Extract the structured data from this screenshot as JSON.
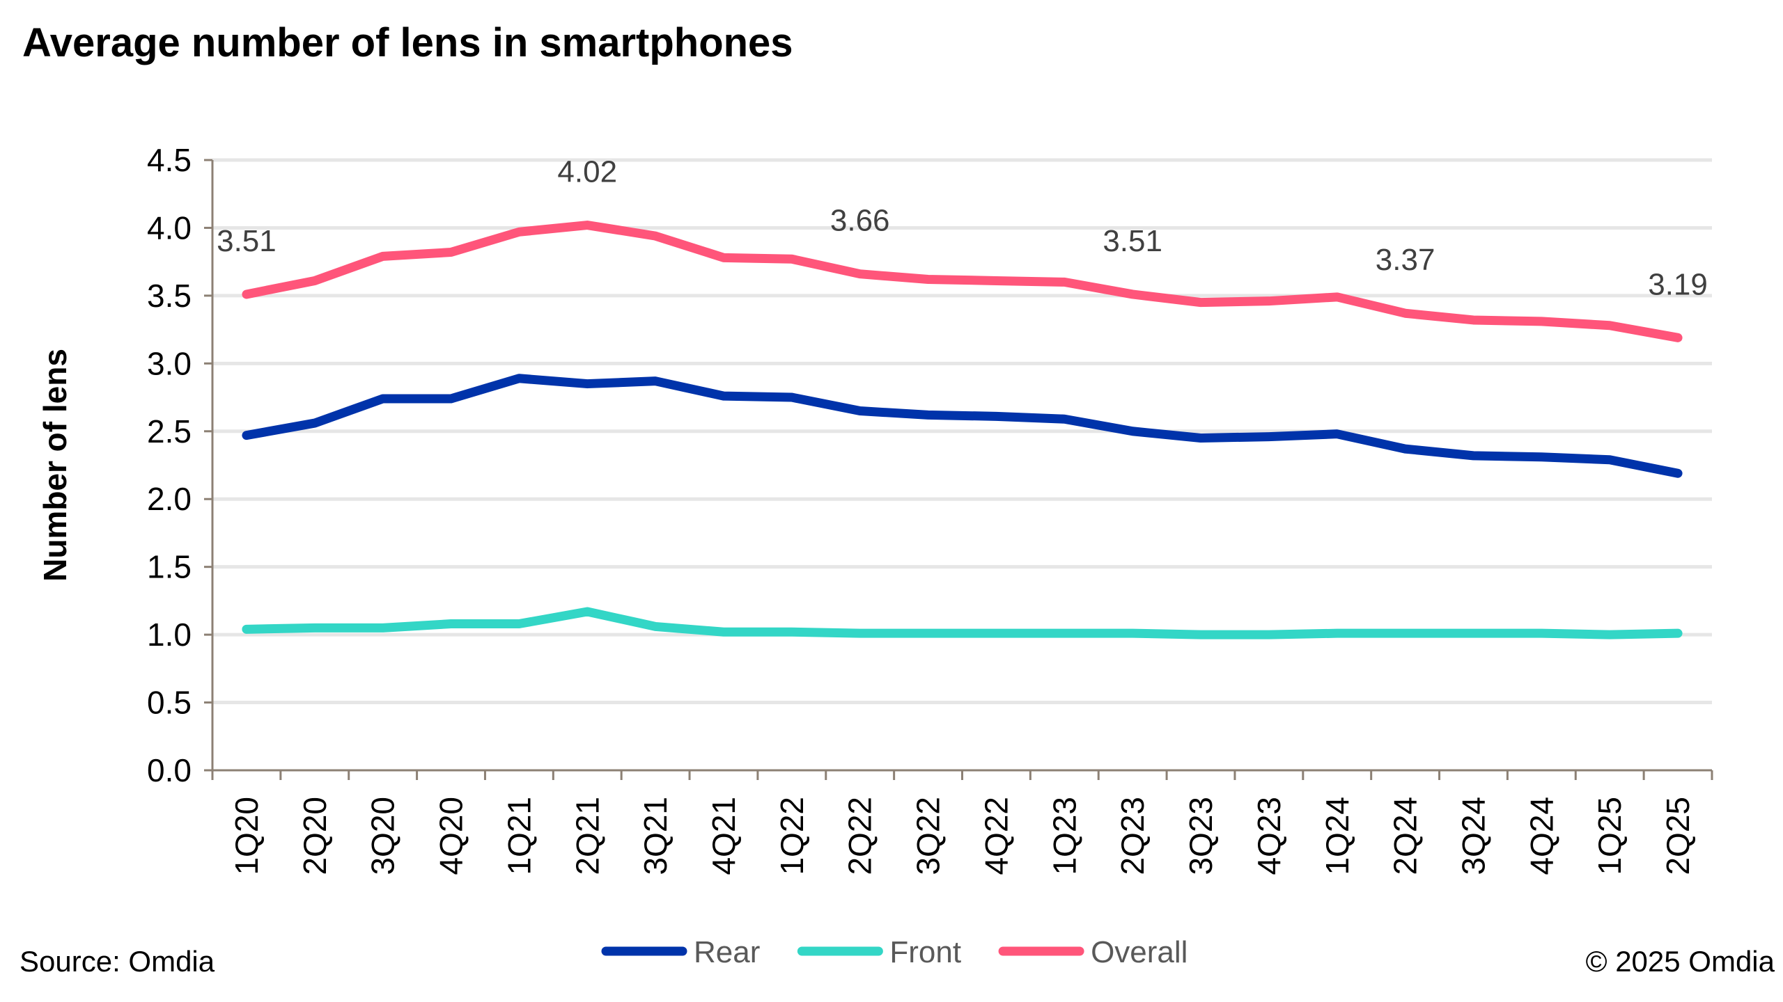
{
  "chart_data": {
    "type": "line",
    "title": "Average number of lens in smartphones",
    "xlabel": "",
    "ylabel": "Number of lens",
    "ylim": [
      0,
      4.5
    ],
    "yticks": [
      "0.0",
      "0.5",
      "1.0",
      "1.5",
      "2.0",
      "2.5",
      "3.0",
      "3.5",
      "4.0",
      "4.5"
    ],
    "grid": true,
    "legend_placement": "bottom",
    "categories": [
      "1Q20",
      "2Q20",
      "3Q20",
      "4Q20",
      "1Q21",
      "2Q21",
      "3Q21",
      "4Q21",
      "1Q22",
      "2Q22",
      "3Q22",
      "4Q22",
      "1Q23",
      "2Q23",
      "3Q23",
      "4Q23",
      "1Q24",
      "2Q24",
      "3Q24",
      "4Q24",
      "1Q25",
      "2Q25"
    ],
    "series": [
      {
        "name": "Rear",
        "color": "#0033AA",
        "values": [
          2.47,
          2.56,
          2.74,
          2.74,
          2.89,
          2.85,
          2.87,
          2.76,
          2.75,
          2.65,
          2.62,
          2.61,
          2.59,
          2.5,
          2.45,
          2.46,
          2.48,
          2.37,
          2.32,
          2.31,
          2.29,
          2.19
        ]
      },
      {
        "name": "Front",
        "color": "#33D6C6",
        "values": [
          1.04,
          1.05,
          1.05,
          1.08,
          1.08,
          1.17,
          1.06,
          1.02,
          1.02,
          1.01,
          1.01,
          1.01,
          1.01,
          1.01,
          1.0,
          1.0,
          1.01,
          1.01,
          1.01,
          1.01,
          1.0,
          1.01
        ]
      },
      {
        "name": "Overall",
        "color": "#FF557A",
        "values": [
          3.51,
          3.61,
          3.79,
          3.82,
          3.97,
          4.02,
          3.94,
          3.78,
          3.77,
          3.66,
          3.62,
          3.61,
          3.6,
          3.51,
          3.45,
          3.46,
          3.49,
          3.37,
          3.32,
          3.31,
          3.28,
          3.19
        ]
      }
    ],
    "data_labels": [
      {
        "series": "Overall",
        "category": "1Q20",
        "text": "3.51"
      },
      {
        "series": "Overall",
        "category": "2Q21",
        "text": "4.02"
      },
      {
        "series": "Overall",
        "category": "2Q22",
        "text": "3.66"
      },
      {
        "series": "Overall",
        "category": "2Q23",
        "text": "3.51"
      },
      {
        "series": "Overall",
        "category": "2Q24",
        "text": "3.37"
      },
      {
        "series": "Overall",
        "category": "2Q25",
        "text": "3.19"
      }
    ]
  },
  "footer": {
    "source": "Source: Omdia",
    "copyright": "© 2025 Omdia"
  }
}
